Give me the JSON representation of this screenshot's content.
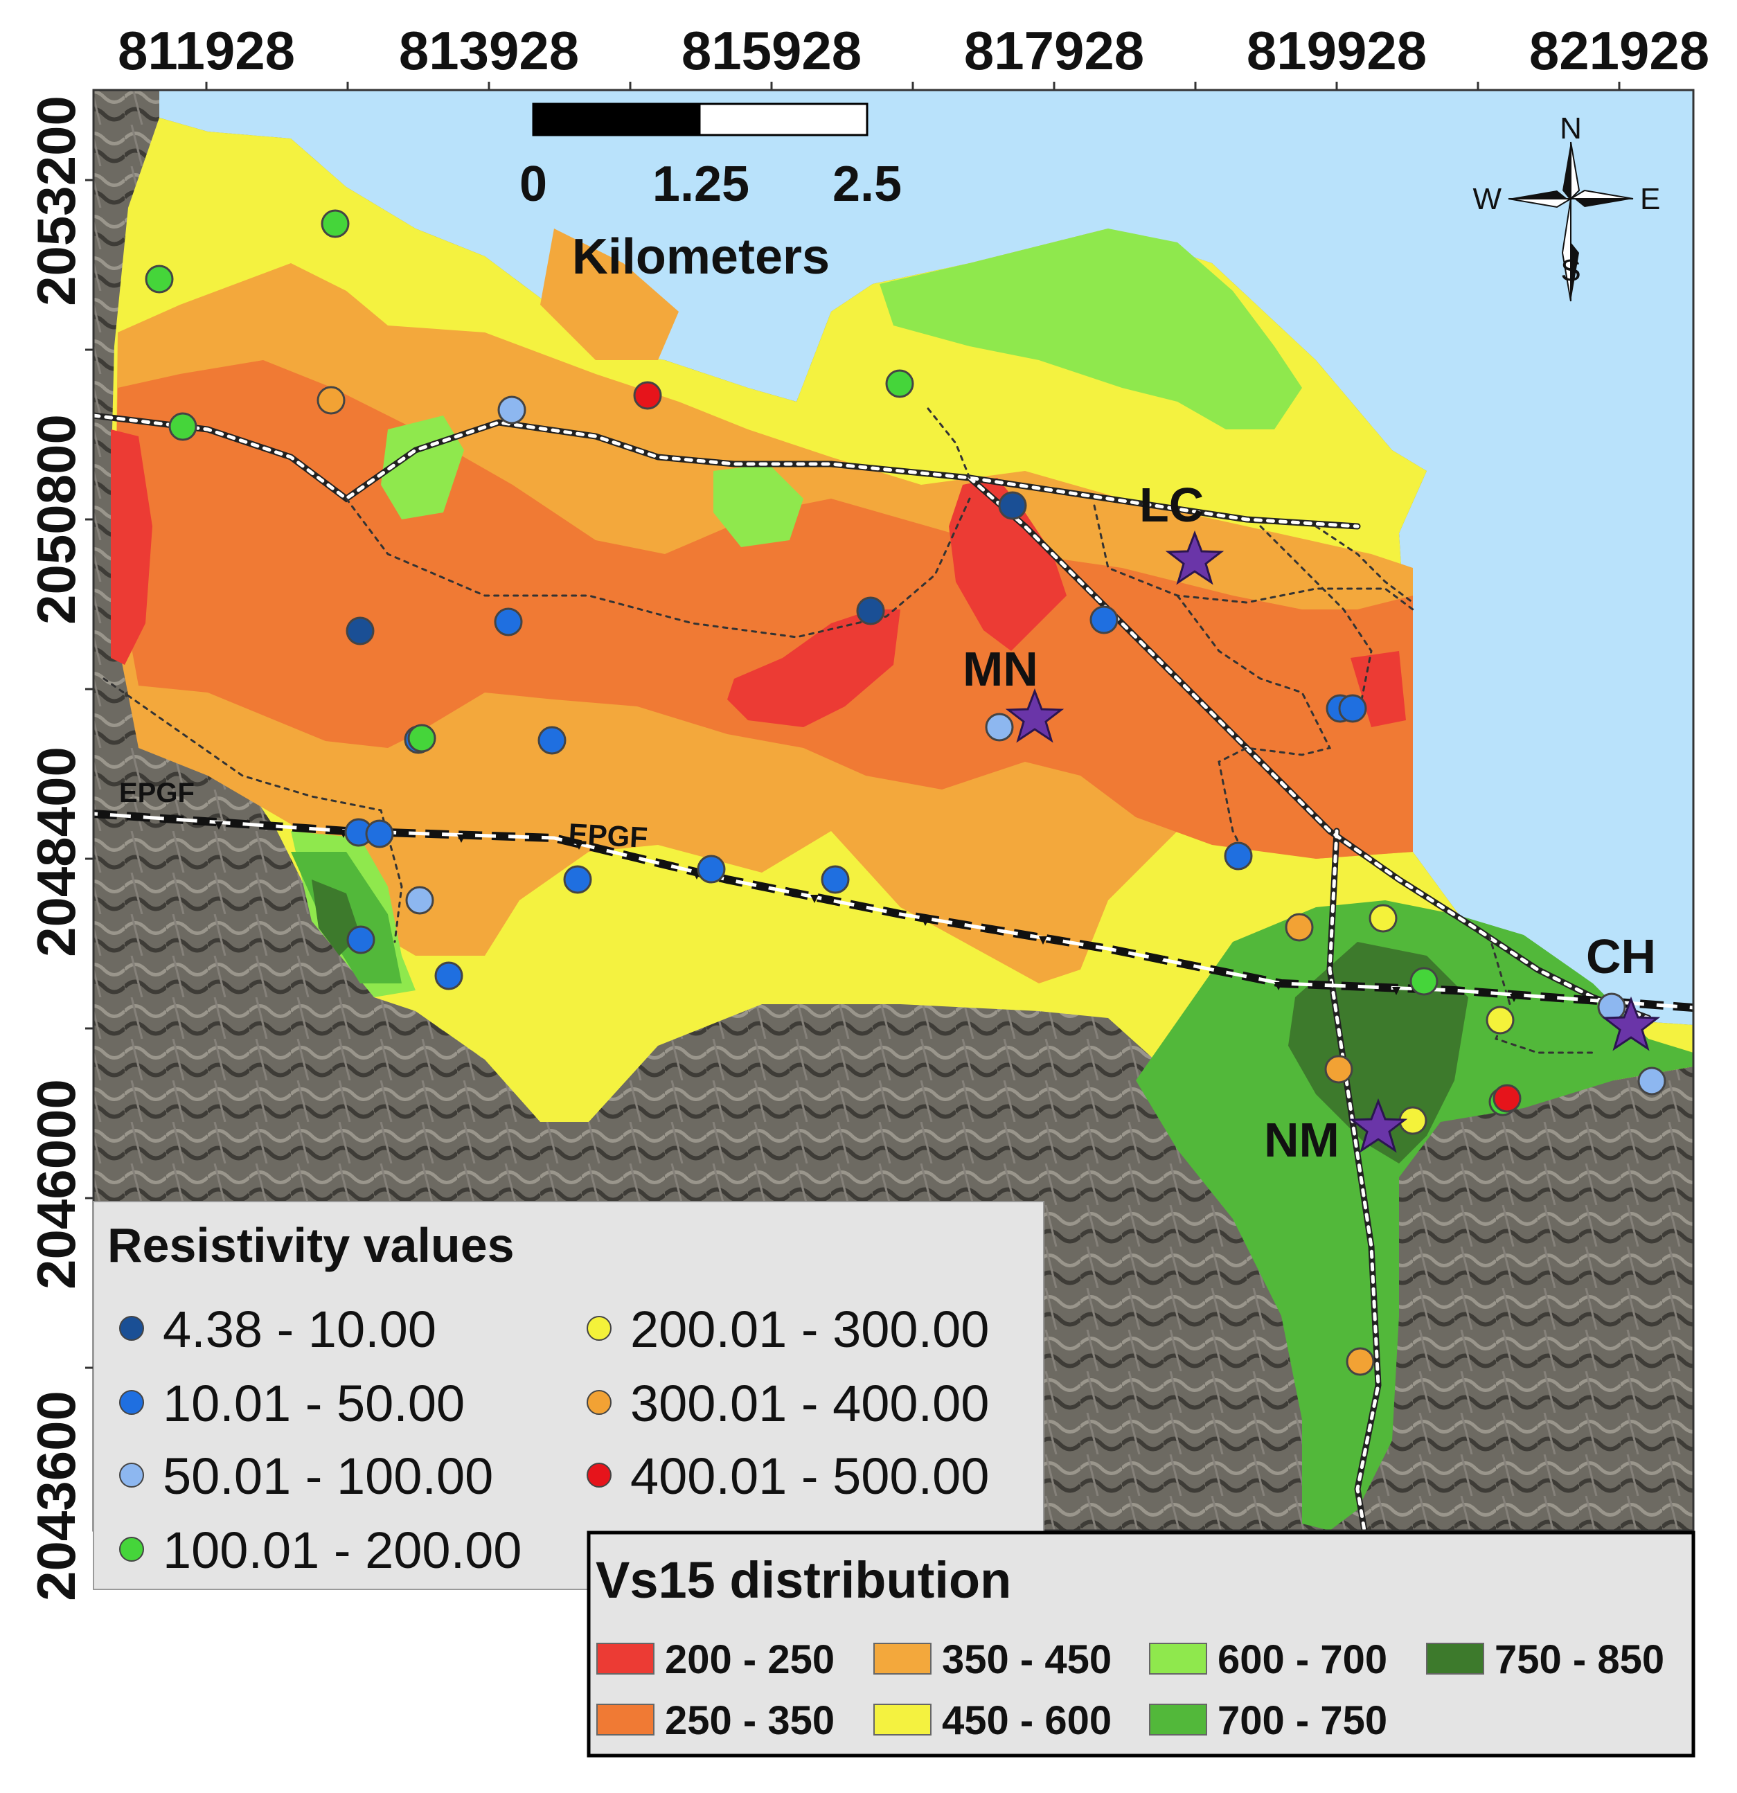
{
  "axes": {
    "x_ticks": [
      "811928",
      "813928",
      "815928",
      "817928",
      "819928",
      "821928"
    ],
    "y_ticks": [
      "2053200",
      "2050800",
      "2048400",
      "2046000",
      "2043600"
    ]
  },
  "scale_bar": {
    "labels": [
      "0",
      "1.25",
      "2.5"
    ],
    "unit": "Kilometers"
  },
  "north_arrow": {
    "n": "N",
    "s": "S",
    "e": "E",
    "w": "W"
  },
  "fault_labels": [
    "EPGF",
    "EPGF"
  ],
  "sites": [
    {
      "label": "LC"
    },
    {
      "label": "MN"
    },
    {
      "label": "CH"
    },
    {
      "label": "NM"
    }
  ],
  "resistivity_legend": {
    "title": "Resistivity values",
    "items": [
      {
        "label": "4.38 - 10.00",
        "color": "#1a4f95"
      },
      {
        "label": "10.01 - 50.00",
        "color": "#1f6fe0"
      },
      {
        "label": "50.01 - 100.00",
        "color": "#8db7f0"
      },
      {
        "label": "100.01 - 200.00",
        "color": "#45d53a"
      },
      {
        "label": "200.01 - 300.00",
        "color": "#f4f23a"
      },
      {
        "label": "300.01 - 400.00",
        "color": "#f2a234"
      },
      {
        "label": "400.01 - 500.00",
        "color": "#e6141b"
      }
    ]
  },
  "vs15_legend": {
    "title": "Vs15 distribution",
    "items": [
      {
        "label": "200 - 250",
        "color": "#ec3b34"
      },
      {
        "label": "250 - 350",
        "color": "#f07a34"
      },
      {
        "label": "350 - 450",
        "color": "#f3a83c"
      },
      {
        "label": "450 - 600",
        "color": "#f4f240"
      },
      {
        "label": "600 - 700",
        "color": "#8fe84d"
      },
      {
        "label": "700 - 750",
        "color": "#52b83a"
      },
      {
        "label": "750 - 850",
        "color": "#3d7a2c"
      }
    ]
  },
  "colors": {
    "water": "#b9e2fb",
    "terrain": "#6f6b62",
    "fault": "#111111"
  }
}
